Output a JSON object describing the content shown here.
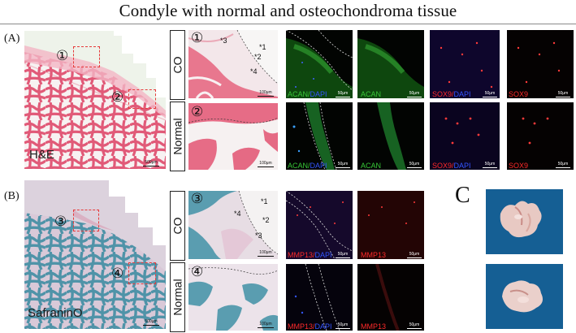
{
  "figure": {
    "title": "Condyle with normal and osteochondroma tissue",
    "panel_a_label": "(A)",
    "panel_b_label": "(B)",
    "panel_c_label": "C",
    "row_labels": {
      "co": "CO",
      "normal": "Normal"
    },
    "stains": {
      "he": "H&E",
      "safranin": "SafraninO"
    },
    "regions": [
      "①",
      "②",
      "③",
      "④"
    ],
    "scale_bar": "500μm",
    "zoom_scale_bar": "100μm",
    "fluor_scale_bar": "50μm",
    "stars": [
      "*1",
      "*2",
      "*3",
      "*4"
    ],
    "channels": {
      "acan": "ACAN",
      "dapi": "DAPI",
      "sox9": "SOX9",
      "mmp13": "MMP13",
      "separator": "/"
    },
    "colors": {
      "he_pink": "#e0607a",
      "bone_blue": "#4f93a8",
      "acan_green": "#38c838",
      "dapi_blue": "#3355ff",
      "red_channel": "#ff2a2a",
      "photo_bg": "#155f94"
    }
  }
}
